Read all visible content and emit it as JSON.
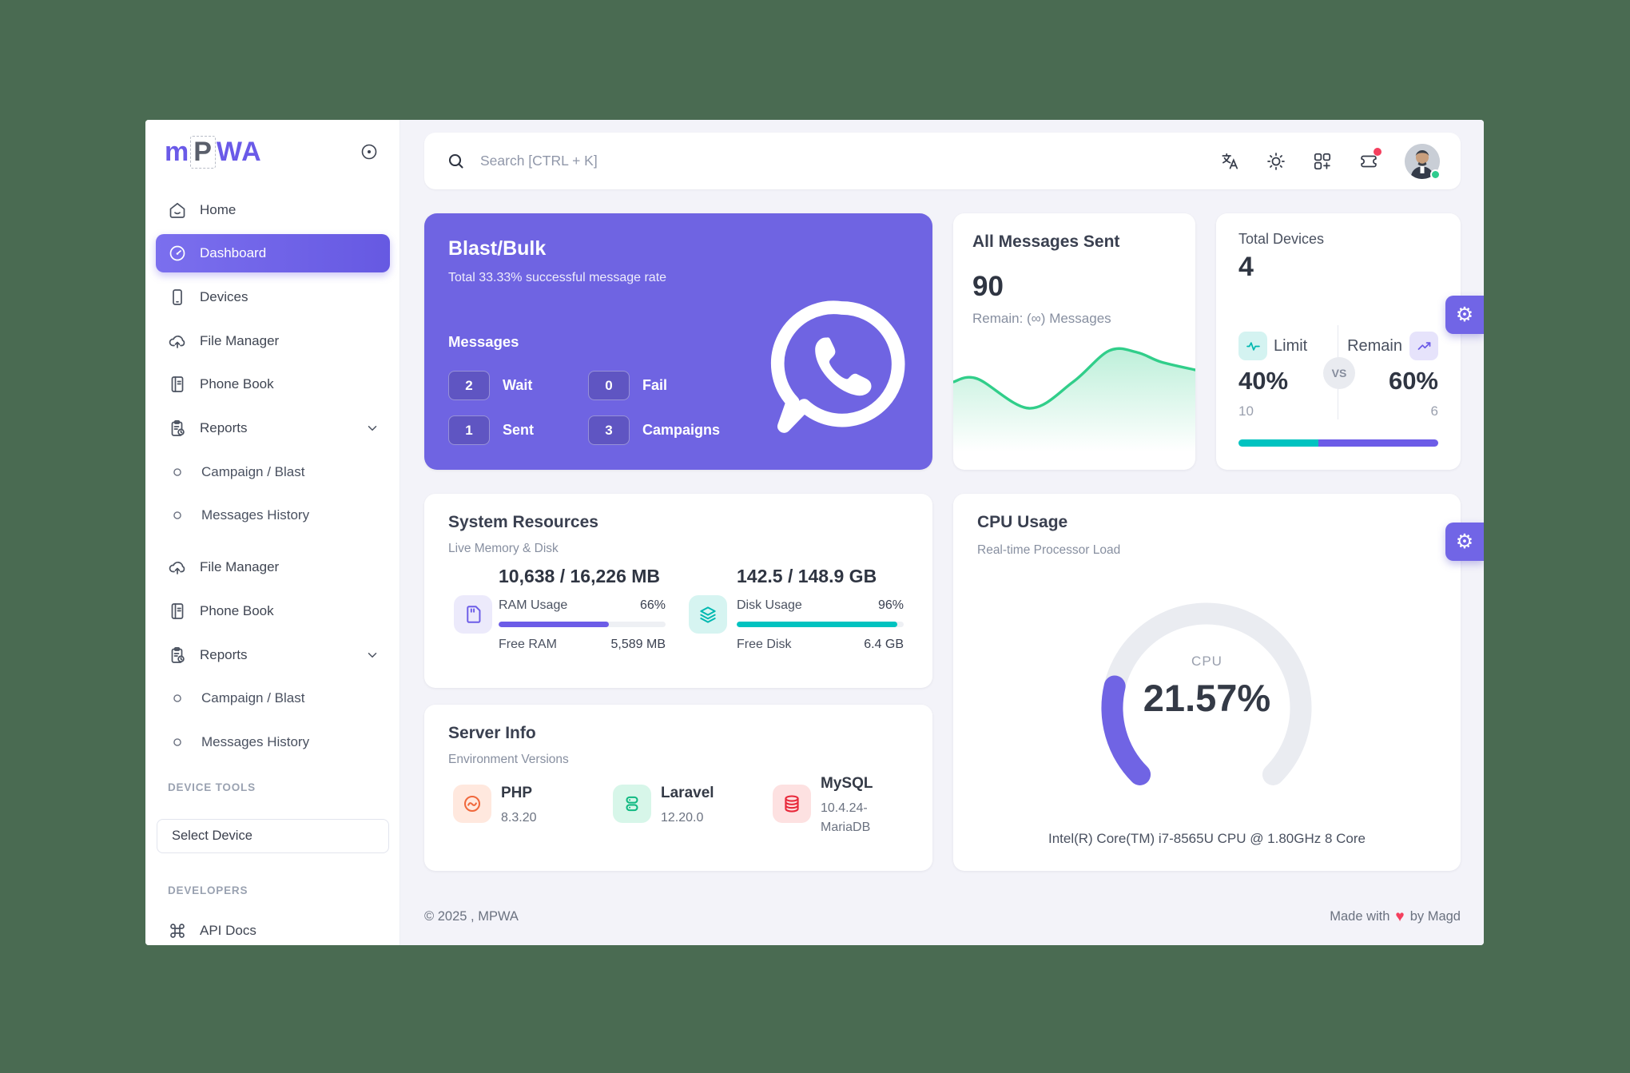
{
  "logo": {
    "part1": "m",
    "part2": "P",
    "part3": "WA"
  },
  "topbar": {
    "search_placeholder": "Search [CTRL + K]"
  },
  "sidebar": {
    "items": [
      {
        "label": "Home"
      },
      {
        "label": "Dashboard"
      },
      {
        "label": "Devices"
      },
      {
        "label": "File Manager"
      },
      {
        "label": "Phone Book"
      },
      {
        "label": "Reports"
      },
      {
        "label": "Campaign / Blast"
      },
      {
        "label": "Messages History"
      },
      {
        "label": "File Manager"
      },
      {
        "label": "Phone Book"
      },
      {
        "label": "Reports"
      },
      {
        "label": "Campaign / Blast"
      },
      {
        "label": "Messages History"
      }
    ],
    "device_tools_label": "DEVICE TOOLS",
    "select_device_value": "Select Device",
    "developers_label": "DEVELOPERS",
    "api_docs_label": "API Docs"
  },
  "blast": {
    "title": "Blast/Bulk",
    "subtitle": "Total 33.33% successful message rate",
    "messages_label": "Messages",
    "stats": [
      {
        "value": "2",
        "label": "Wait"
      },
      {
        "value": "0",
        "label": "Fail"
      },
      {
        "value": "1",
        "label": "Sent"
      },
      {
        "value": "3",
        "label": "Campaigns"
      }
    ]
  },
  "all_messages": {
    "title": "All Messages Sent",
    "value": "90",
    "remain": "Remain: (∞) Messages",
    "spark": [
      [
        0,
        70
      ],
      [
        30,
        66
      ],
      [
        95,
        103
      ],
      [
        150,
        70
      ],
      [
        195,
        31
      ],
      [
        230,
        33
      ],
      [
        260,
        45
      ],
      [
        303,
        55
      ]
    ]
  },
  "devices_card": {
    "title": "Total Devices",
    "value": "4",
    "limit_label": "Limit",
    "remain_label": "Remain",
    "vs_label": "VS",
    "limit_pct": "40%",
    "remain_pct": "60%",
    "limit_count": "10",
    "remain_count": "6"
  },
  "system": {
    "title": "System Resources",
    "subtitle": "Live Memory & Disk",
    "ram": {
      "value": "10,638 / 16,226 MB",
      "label": "RAM Usage",
      "pct": "66%",
      "free_label": "Free RAM",
      "free_value": "5,589 MB"
    },
    "disk": {
      "value": "142.5 / 148.9 GB",
      "label": "Disk Usage",
      "pct": "96%",
      "free_label": "Free Disk",
      "free_value": "6.4 GB"
    }
  },
  "server": {
    "title": "Server Info",
    "subtitle": "Environment Versions",
    "items": [
      {
        "name": "PHP",
        "version": "8.3.20"
      },
      {
        "name": "Laravel",
        "version": "12.20.0"
      },
      {
        "name": "MySQL",
        "version": "10.4.24-MariaDB"
      }
    ]
  },
  "cpu": {
    "title": "CPU Usage",
    "subtitle": "Real-time Processor Load",
    "gauge_label": "CPU",
    "value": "21.57%",
    "value_num": 21.57,
    "caption": "Intel(R) Core(TM) i7-8565U CPU @ 1.80GHz 8 Core"
  },
  "footer": {
    "copyright": "© 2025 , MPWA",
    "made_with": "Made with",
    "by": "by Magd"
  },
  "colors": {
    "accent": "#6c5ce7",
    "teal": "#00c3c0",
    "green": "#31ce8a",
    "heart_red": "#f43f5e",
    "card_purple": "#6f64e2"
  },
  "chart_data": [
    {
      "type": "area",
      "title": "All Messages Sent trend",
      "series": [
        {
          "name": "messages",
          "values": [
            55,
            58,
            40,
            56,
            75,
            74,
            68,
            64
          ]
        }
      ],
      "legend": false,
      "grid": false
    },
    {
      "type": "gauge",
      "title": "CPU Usage",
      "value": 21.57,
      "min": 0,
      "max": 100,
      "label": "CPU"
    },
    {
      "type": "bar",
      "title": "Devices Limit vs Remain",
      "categories": [
        "Limit",
        "Remain"
      ],
      "values": [
        40,
        60
      ],
      "unit": "%"
    },
    {
      "type": "bar",
      "title": "Resource usage",
      "categories": [
        "RAM Usage",
        "Disk Usage"
      ],
      "values": [
        66,
        96
      ],
      "unit": "%"
    }
  ]
}
